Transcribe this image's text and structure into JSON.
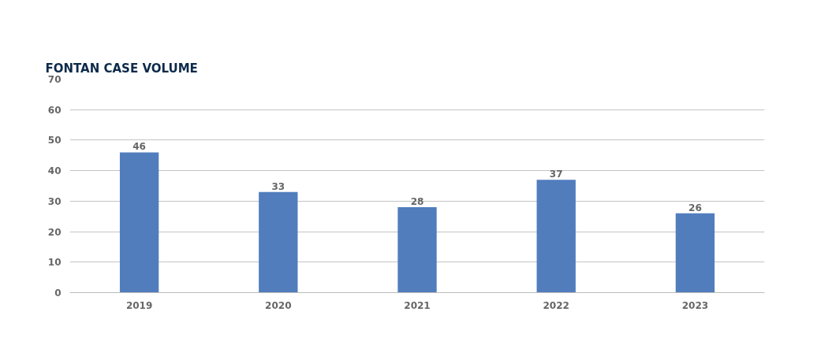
{
  "chart_data": {
    "type": "bar",
    "title": "FONTAN CASE VOLUME",
    "categories": [
      "2019",
      "2020",
      "2021",
      "2022",
      "2023"
    ],
    "values": [
      46,
      33,
      28,
      37,
      26
    ],
    "color": "#517dbd",
    "ylim": [
      0,
      70
    ],
    "yticks": [
      0,
      10,
      20,
      30,
      40,
      50,
      60,
      70
    ],
    "grid": "y",
    "data_labels": true
  }
}
